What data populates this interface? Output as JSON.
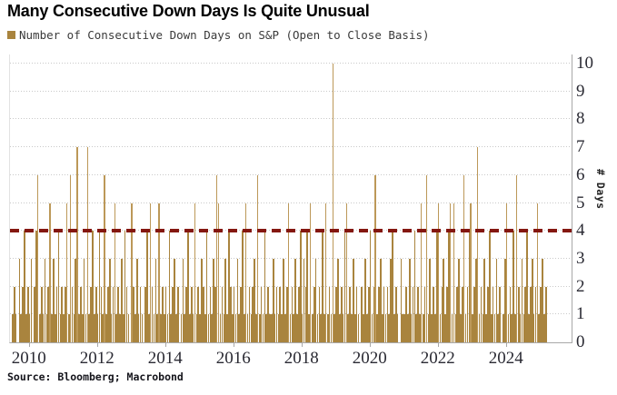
{
  "title": "Many Consecutive Down Days Is Quite Unusual",
  "legend": {
    "label": "Number of Consecutive Down Days on S&P (Open to Close Basis)",
    "marker_color": "#A9843E"
  },
  "source": "Source: Bloomberg; Macrobond",
  "colors": {
    "bar": "#A9843E",
    "bar_spike": "#BC9858",
    "threshold": "#841710",
    "grid": "#c9c9c9",
    "axis": "#a8a8a8",
    "tick_text": "#2a2a33"
  },
  "y_axis": {
    "label": "# Days",
    "ticks": [
      0,
      1,
      2,
      3,
      4,
      5,
      6,
      7,
      8,
      9,
      10
    ],
    "min": 0,
    "max": 10
  },
  "x_axis": {
    "ticks": [
      "2010",
      "2012",
      "2014",
      "2016",
      "2018",
      "2020",
      "2022",
      "2024"
    ]
  },
  "chart_data": {
    "type": "bar",
    "title": "Many Consecutive Down Days Is Quite Unusual",
    "series_name": "Number of Consecutive Down Days on S&P (Open to Close Basis)",
    "xlabel": "",
    "ylabel": "# Days",
    "ylim": [
      0,
      10
    ],
    "x_tick_years": [
      2010,
      2012,
      2014,
      2016,
      2018,
      2020,
      2022,
      2024
    ],
    "grid": "dotted-horizontal",
    "legend_position": "top-left",
    "reference_line": {
      "y": 4,
      "style": "dashed",
      "color": "#841710"
    },
    "x_start": 2009.5,
    "x_step": 0.05,
    "values": [
      1,
      2,
      1,
      0,
      3,
      1,
      2,
      4,
      1,
      2,
      1,
      3,
      0,
      2,
      4,
      6,
      1,
      2,
      1,
      3,
      1,
      2,
      5,
      1,
      3,
      1,
      2,
      4,
      1,
      2,
      1,
      2,
      5,
      1,
      6,
      2,
      1,
      3,
      7,
      1,
      2,
      1,
      3,
      1,
      7,
      1,
      2,
      4,
      1,
      2,
      1,
      4,
      2,
      1,
      6,
      1,
      2,
      3,
      1,
      2,
      5,
      1,
      2,
      1,
      3,
      1,
      4,
      2,
      1,
      0,
      5,
      2,
      1,
      3,
      1,
      2,
      1,
      0,
      2,
      4,
      1,
      5,
      2,
      1,
      3,
      1,
      5,
      1,
      2,
      1,
      2,
      1,
      4,
      1,
      2,
      3,
      1,
      2,
      0,
      1,
      3,
      1,
      2,
      4,
      1,
      2,
      1,
      5,
      1,
      2,
      1,
      3,
      2,
      1,
      4,
      1,
      2,
      1,
      3,
      2,
      6,
      5,
      1,
      2,
      1,
      3,
      1,
      4,
      2,
      1,
      2,
      1,
      3,
      1,
      2,
      4,
      1,
      5,
      1,
      2,
      1,
      2,
      3,
      1,
      6,
      1,
      2,
      1,
      4,
      1,
      2,
      1,
      1,
      3,
      1,
      2,
      1,
      2,
      1,
      3,
      1,
      2,
      5,
      1,
      2,
      1,
      3,
      1,
      2,
      4,
      1,
      3,
      2,
      4,
      1,
      5,
      1,
      2,
      3,
      1,
      2,
      1,
      4,
      1,
      5,
      1,
      2,
      1,
      10,
      1,
      2,
      3,
      1,
      2,
      1,
      4,
      5,
      1,
      2,
      1,
      3,
      1,
      2,
      1,
      0,
      2,
      1,
      3,
      1,
      2,
      4,
      1,
      2,
      6,
      1,
      2,
      3,
      1,
      2,
      1,
      2,
      1,
      3,
      4,
      1,
      2,
      1,
      0,
      3,
      1,
      1,
      2,
      1,
      3,
      1,
      2,
      4,
      1,
      2,
      1,
      5,
      1,
      2,
      6,
      1,
      3,
      1,
      2,
      1,
      4,
      5,
      1,
      2,
      3,
      1,
      2,
      4,
      5,
      1,
      5,
      1,
      2,
      3,
      1,
      2,
      6,
      1,
      2,
      4,
      5,
      1,
      2,
      3,
      7,
      1,
      2,
      1,
      3,
      1,
      2,
      4,
      1,
      2,
      1,
      3,
      1,
      2,
      0,
      1,
      3,
      5,
      1,
      2,
      1,
      4,
      1,
      6,
      2,
      1,
      3,
      1,
      2,
      4,
      1,
      2,
      3,
      1,
      2,
      5,
      1,
      2,
      3,
      1,
      2,
      0
    ],
    "notable_events": [
      {
        "year": 2010.3,
        "value": 6
      },
      {
        "year": 2011.2,
        "value": 6
      },
      {
        "year": 2011.4,
        "value": 7
      },
      {
        "year": 2011.7,
        "value": 7
      },
      {
        "year": 2012.2,
        "value": 6
      },
      {
        "year": 2015.5,
        "value": 6
      },
      {
        "year": 2016.7,
        "value": 6
      },
      {
        "year": 2018.9,
        "value": 10
      },
      {
        "year": 2020.1,
        "value": 6
      },
      {
        "year": 2021.7,
        "value": 6
      },
      {
        "year": 2022.8,
        "value": 6
      },
      {
        "year": 2023.2,
        "value": 7
      },
      {
        "year": 2024.3,
        "value": 6
      }
    ]
  }
}
